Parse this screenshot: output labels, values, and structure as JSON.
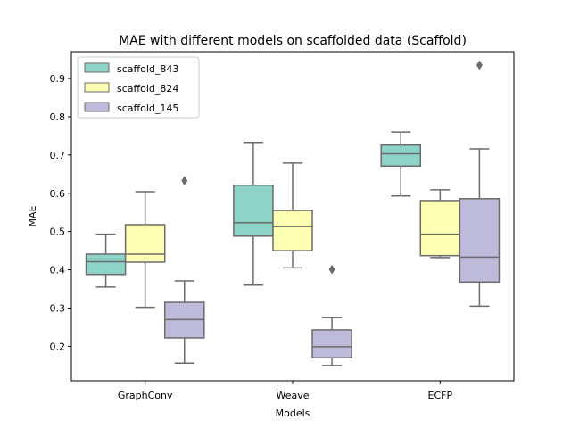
{
  "chart_data": {
    "type": "box",
    "title": "MAE with different models on scaffolded data (Scaffold)",
    "xlabel": "Models",
    "ylabel": "MAE",
    "categories": [
      "GraphConv",
      "Weave",
      "ECFP"
    ],
    "ylim": [
      0.11,
      0.97
    ],
    "yticks": [
      0.2,
      0.3,
      0.4,
      0.5,
      0.6,
      0.7,
      0.8,
      0.9
    ],
    "grid": false,
    "legend_position": "top-left",
    "series": [
      {
        "name": "scaffold_843",
        "color": "#8dd3c7",
        "boxes": [
          {
            "category": "GraphConv",
            "whisker_low": 0.355,
            "q1": 0.388,
            "median": 0.421,
            "q3": 0.441,
            "whisker_high": 0.493,
            "outliers": []
          },
          {
            "category": "Weave",
            "whisker_low": 0.36,
            "q1": 0.488,
            "median": 0.523,
            "q3": 0.621,
            "whisker_high": 0.733,
            "outliers": []
          },
          {
            "category": "ECFP",
            "whisker_low": 0.593,
            "q1": 0.671,
            "median": 0.703,
            "q3": 0.726,
            "whisker_high": 0.76,
            "outliers": []
          }
        ]
      },
      {
        "name": "scaffold_824",
        "color": "#ffffb3",
        "boxes": [
          {
            "category": "GraphConv",
            "whisker_low": 0.302,
            "q1": 0.42,
            "median": 0.441,
            "q3": 0.518,
            "whisker_high": 0.604,
            "outliers": []
          },
          {
            "category": "Weave",
            "whisker_low": 0.405,
            "q1": 0.45,
            "median": 0.513,
            "q3": 0.555,
            "whisker_high": 0.679,
            "outliers": []
          },
          {
            "category": "ECFP",
            "whisker_low": 0.432,
            "q1": 0.437,
            "median": 0.493,
            "q3": 0.581,
            "whisker_high": 0.609,
            "outliers": []
          }
        ]
      },
      {
        "name": "scaffold_145",
        "color": "#bebada",
        "boxes": [
          {
            "category": "GraphConv",
            "whisker_low": 0.156,
            "q1": 0.222,
            "median": 0.27,
            "q3": 0.315,
            "whisker_high": 0.371,
            "outliers": [
              0.633
            ]
          },
          {
            "category": "Weave",
            "whisker_low": 0.15,
            "q1": 0.17,
            "median": 0.199,
            "q3": 0.243,
            "whisker_high": 0.275,
            "outliers": [
              0.401
            ]
          },
          {
            "category": "ECFP",
            "whisker_low": 0.305,
            "q1": 0.368,
            "median": 0.433,
            "q3": 0.586,
            "whisker_high": 0.716,
            "outliers": [
              0.935
            ]
          }
        ]
      }
    ]
  }
}
